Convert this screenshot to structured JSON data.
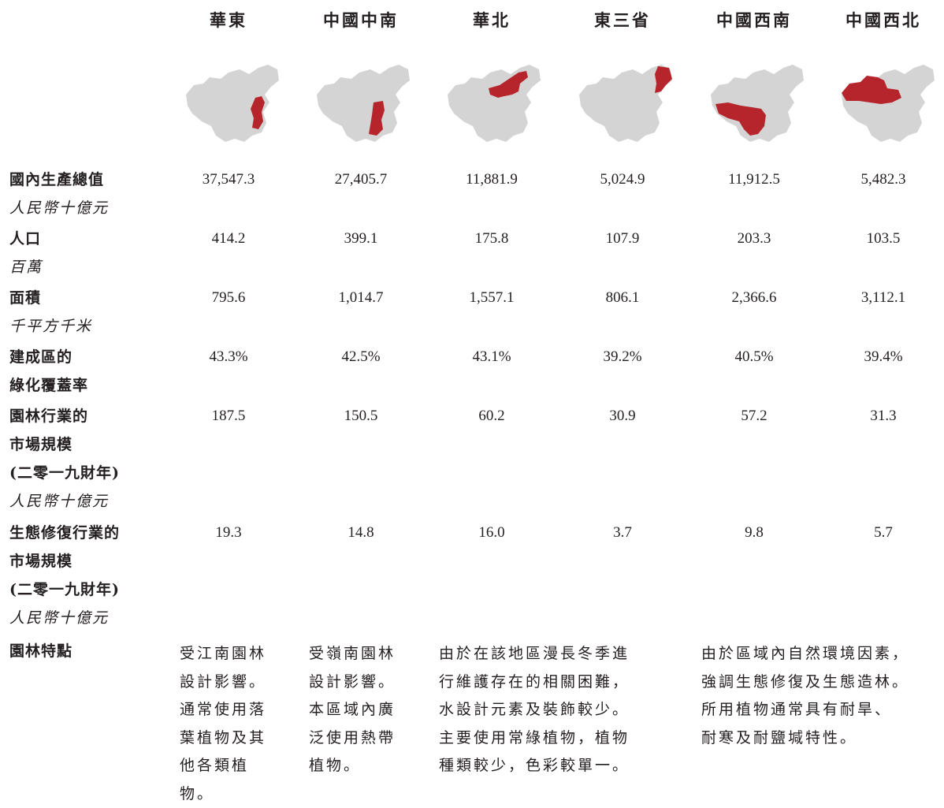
{
  "regions": [
    {
      "name": "華東",
      "gdp": "37,547.3",
      "population": "414.2",
      "area": "795.6",
      "green_rate": "43.3%",
      "garden_market": "187.5",
      "eco_market": "19.3"
    },
    {
      "name": "中國中南",
      "gdp": "27,405.7",
      "population": "399.1",
      "area": "1,014.7",
      "green_rate": "42.5%",
      "garden_market": "150.5",
      "eco_market": "14.8"
    },
    {
      "name": "華北",
      "gdp": "11,881.9",
      "population": "175.8",
      "area": "1,557.1",
      "green_rate": "43.1%",
      "garden_market": "60.2",
      "eco_market": "16.0"
    },
    {
      "name": "東三省",
      "gdp": "5,024.9",
      "population": "107.9",
      "area": "806.1",
      "green_rate": "39.2%",
      "garden_market": "30.9",
      "eco_market": "3.7"
    },
    {
      "name": "中國西南",
      "gdp": "11,912.5",
      "population": "203.3",
      "area": "2,366.6",
      "green_rate": "40.5%",
      "garden_market": "57.2",
      "eco_market": "9.8"
    },
    {
      "name": "中國西北",
      "gdp": "5,482.3",
      "population": "103.5",
      "area": "3,112.1",
      "green_rate": "39.4%",
      "garden_market": "31.3",
      "eco_market": "5.7"
    }
  ],
  "row_labels": {
    "gdp": {
      "title": "國內生產總值",
      "unit": "人民幣十億元"
    },
    "population": {
      "title": "人口",
      "unit": "百萬"
    },
    "area": {
      "title": "面積",
      "unit": "千平方千米"
    },
    "green_rate": {
      "title_line1": "建成區的",
      "title_line2": "綠化覆蓋率"
    },
    "garden_market": {
      "title_line1": "園林行業的",
      "title_line2": "市場規模",
      "title_line3": "(二零一九財年)",
      "unit": "人民幣十億元"
    },
    "eco_market": {
      "title_line1": "生態修復行業的",
      "title_line2": "市場規模",
      "title_line3": "(二零一九財年)",
      "unit": "人民幣十億元"
    },
    "features": {
      "title": "園林特點"
    }
  },
  "features": {
    "east": [
      "受江南園林",
      "設計影響。",
      "通常使用落",
      "葉植物及其",
      "他各類植",
      "物。"
    ],
    "central_south": [
      "受嶺南園林",
      "設計影響。",
      "本區域內廣",
      "泛使用熱帶",
      "植物。"
    ],
    "north_northeast": [
      "由於在該地區漫長冬季進",
      "行維護存在的相關困難，",
      "水設計元素及裝飾較少。",
      "主要使用常綠植物，植物",
      "種類較少，色彩較單一。"
    ],
    "southwest_northwest": [
      "由於區域內自然環境因素，",
      "強調生態修復及生態造林。",
      "所用植物通常具有耐旱、",
      "耐寒及耐鹽堿特性。"
    ]
  },
  "colors": {
    "highlight": "#b5252b",
    "map_base": "#d4d4d4",
    "text": "#231f20"
  }
}
